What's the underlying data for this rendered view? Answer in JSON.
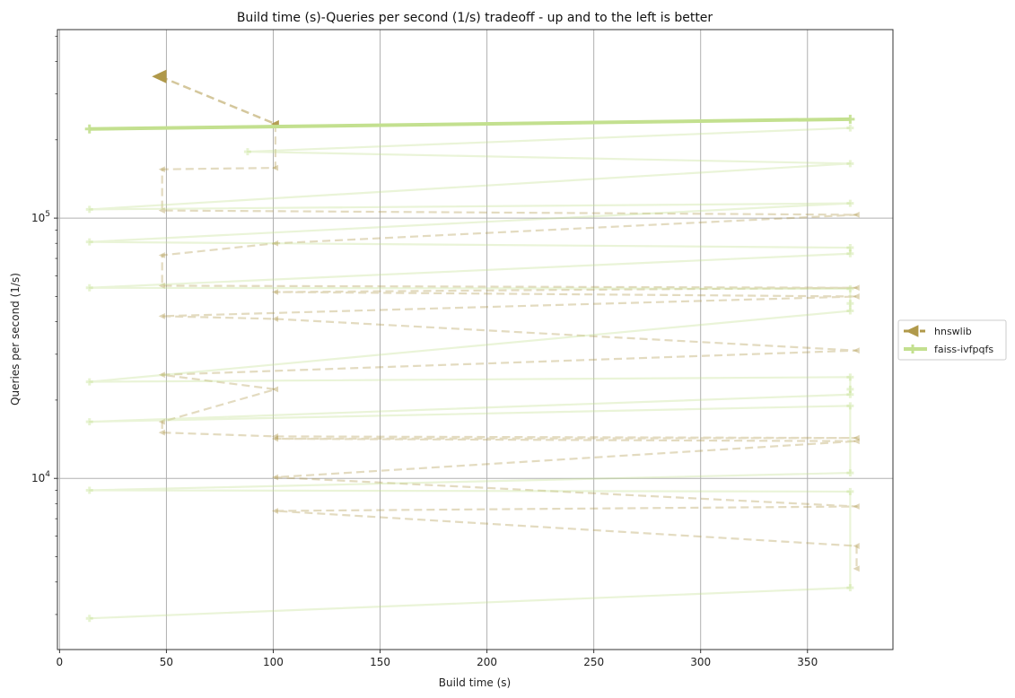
{
  "chart_data": {
    "type": "line",
    "title": "Build time (s)-Queries per second (1/s) tradeoff - up and to the left is better",
    "xlabel": "Build time (s)",
    "ylabel": "Queries per second (1/s)",
    "xlim": [
      -1,
      390
    ],
    "ylim": [
      2200,
      530000
    ],
    "yscale": "log",
    "grid": true,
    "x_ticks": [
      0,
      50,
      100,
      150,
      200,
      250,
      300,
      350
    ],
    "y_major_ticks": [
      {
        "value": 10000,
        "base": "10",
        "exp": "4"
      },
      {
        "value": 100000,
        "base": "10",
        "exp": "5"
      }
    ],
    "legend_placement": "right, outside",
    "series": [
      {
        "name": "hnswlib",
        "color": "#b0994a",
        "marker": "triangle-left",
        "linestyle": "dashed",
        "pareto": [
          [
            47,
            350000
          ],
          [
            101,
            230000
          ]
        ],
        "points": [
          [
            101,
            230000
          ],
          [
            101,
            156000
          ],
          [
            48,
            154000
          ],
          [
            48,
            107000
          ],
          [
            373,
            103000
          ],
          [
            101,
            80000
          ],
          [
            48,
            72000
          ],
          [
            48,
            55000
          ],
          [
            373,
            54000
          ],
          [
            101,
            52000
          ],
          [
            373,
            50000
          ],
          [
            48,
            42000
          ],
          [
            101,
            41000
          ],
          [
            373,
            31000
          ],
          [
            48,
            25000
          ],
          [
            101,
            22000
          ],
          [
            48,
            16500
          ],
          [
            48,
            15000
          ],
          [
            101,
            14500
          ],
          [
            373,
            14300
          ],
          [
            101,
            14200
          ],
          [
            373,
            13900
          ],
          [
            101,
            10100
          ],
          [
            373,
            7800
          ],
          [
            101,
            7500
          ],
          [
            373,
            5500
          ],
          [
            373,
            4500
          ]
        ]
      },
      {
        "name": "faiss-ivfpqfs",
        "color": "#c3e08f",
        "marker": "plus",
        "linestyle": "solid",
        "pareto": [
          [
            14,
            220000
          ],
          [
            370,
            240000
          ]
        ],
        "points": [
          [
            370,
            222000
          ],
          [
            88,
            180000
          ],
          [
            370,
            162000
          ],
          [
            14,
            108000
          ],
          [
            370,
            114000
          ],
          [
            14,
            81000
          ],
          [
            370,
            77000
          ],
          [
            370,
            73000
          ],
          [
            14,
            54000
          ],
          [
            370,
            53500
          ],
          [
            370,
            47000
          ],
          [
            370,
            44000
          ],
          [
            14,
            23500
          ],
          [
            370,
            24500
          ],
          [
            370,
            22000
          ],
          [
            370,
            21000
          ],
          [
            14,
            16500
          ],
          [
            370,
            19000
          ],
          [
            370,
            10500
          ],
          [
            14,
            9000
          ],
          [
            370,
            8900
          ],
          [
            370,
            3800
          ],
          [
            14,
            2900
          ]
        ]
      }
    ]
  }
}
